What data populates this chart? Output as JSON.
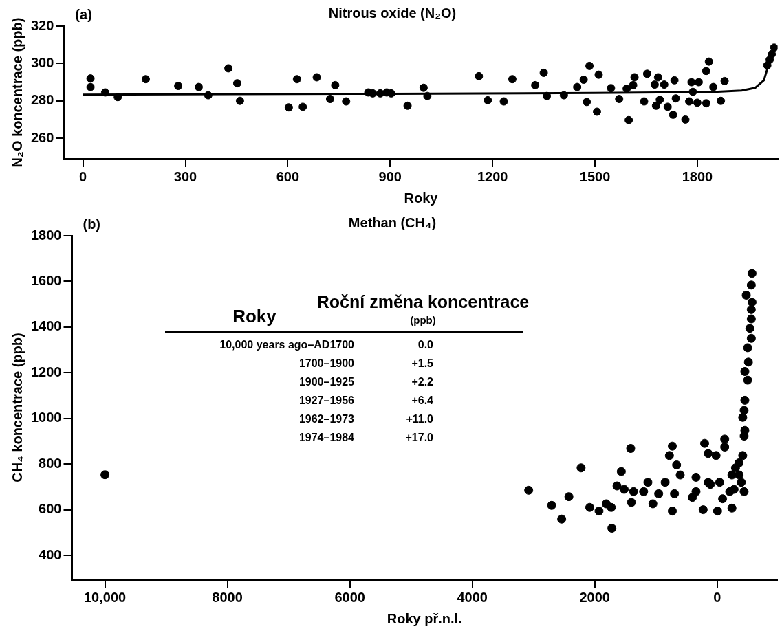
{
  "chart_data": [
    {
      "type": "scatter",
      "title": "Nitrous oxide (N₂O)",
      "xlabel": "Roky",
      "ylabel": "N₂O koncentrace (ppb)",
      "xlim": [
        -55,
        2035
      ],
      "ylim": [
        249,
        320
      ],
      "xticks": [
        0,
        300,
        600,
        900,
        1200,
        1500,
        1800
      ],
      "yticks": [
        260,
        280,
        300,
        320
      ],
      "annotations": [
        "(a)"
      ],
      "series": [
        {
          "type": "scatter",
          "marker": "circle",
          "color": "#000000",
          "x": [
            22,
            22,
            65,
            102,
            184,
            279,
            339,
            367,
            426,
            452,
            460,
            603,
            627,
            644,
            685,
            724,
            739,
            771,
            836,
            849,
            871,
            890,
            903,
            951,
            998,
            1009,
            1160,
            1186,
            1233,
            1258,
            1325,
            1350,
            1359,
            1409,
            1448,
            1467,
            1476,
            1484,
            1506,
            1511,
            1547,
            1571,
            1593,
            1599,
            1612,
            1616,
            1644,
            1653,
            1675,
            1679,
            1685,
            1690,
            1703,
            1713,
            1729,
            1733,
            1737,
            1765,
            1776,
            1783,
            1787,
            1800,
            1804,
            1826,
            1826,
            1834,
            1847,
            1869,
            1880,
            2005,
            2012,
            2018,
            2025
          ],
          "values": [
            292,
            287.4,
            284.5,
            282,
            291.6,
            288,
            287.4,
            283,
            297.4,
            289.4,
            280,
            276.5,
            291.6,
            276.8,
            292.6,
            281,
            288.4,
            279.7,
            284.5,
            284,
            284,
            284.5,
            284,
            277.4,
            287,
            282.6,
            293.2,
            280.3,
            279.7,
            291.6,
            288.4,
            295,
            282.6,
            283,
            287.4,
            291.3,
            279.4,
            298.7,
            274.2,
            294,
            286.8,
            281,
            286.5,
            269.7,
            288.4,
            292.6,
            279.7,
            294.5,
            288.7,
            277.4,
            292.6,
            280.6,
            288.7,
            276.8,
            272.6,
            291,
            281.3,
            270,
            279.7,
            290,
            284.8,
            279,
            290,
            278.7,
            296,
            301,
            287.4,
            280,
            290.6,
            299,
            302,
            305,
            308.5
          ]
        },
        {
          "type": "line",
          "marker": "none",
          "color": "#000000",
          "x": [
            0,
            900,
            1500,
            1850,
            1930,
            1970,
            1995,
            2005,
            2015,
            2025
          ],
          "values": [
            283.3,
            283.8,
            284.2,
            284.8,
            285.5,
            287,
            291,
            297,
            303,
            308.5
          ]
        }
      ]
    },
    {
      "type": "scatter",
      "title": "Methan (CH₄)",
      "xlabel": "Roky př.n.l.",
      "ylabel": "CH₄ koncentrace (ppb)",
      "xlim": [
        10540,
        -980
      ],
      "ylim": [
        296,
        1800
      ],
      "xticks": [
        {
          "value": 10000,
          "label": "10,000"
        },
        8000,
        6000,
        4000,
        2000,
        0
      ],
      "yticks": [
        400,
        600,
        800,
        1000,
        1200,
        1400,
        1600,
        1800
      ],
      "marker": "circle",
      "annotations": [
        "(b)",
        "Roky",
        "Roční změna koncentrace",
        "(ppb)",
        "10,000 years ago–AD1700",
        "0.0",
        "1700–1900",
        "+1.5",
        "1900–1925",
        "+2.2",
        "1927–1956",
        "+6.4",
        "1962–1973",
        "+11.0",
        "1974–1984",
        "+17.0"
      ],
      "series": [
        {
          "type": "scatter",
          "color": "#000000",
          "x": [
            10000,
            3079,
            2704,
            2540,
            2422,
            2223,
            2082,
            1930,
            1812,
            1730,
            1720,
            1636,
            1566,
            1519,
            1413,
            1401,
            1366,
            1202,
            1132,
            1050,
            956,
            850,
            780,
            733,
            733,
            698,
            663,
            604,
            405,
            346,
            346,
            229,
            205,
            147,
            147,
            112,
            18,
            -6,
            -41,
            -88,
            -123,
            -123,
            -205,
            -241,
            -241,
            -276,
            -299,
            -358,
            -358,
            -393,
            -417,
            -417,
            -440,
            -440,
            -440,
            -452,
            -452,
            -452,
            -475,
            -498,
            -498,
            -510,
            -534,
            -557,
            -557,
            -557,
            -557,
            -569,
            -569
          ],
          "values": [
            754,
            686,
            620,
            560,
            658,
            784,
            611,
            595,
            627,
            611,
            520,
            705,
            768,
            690,
            869,
            633,
            680,
            680,
            721,
            627,
            671,
            721,
            838,
            879,
            595,
            671,
            797,
            753,
            655,
            743,
            680,
            601,
            891,
            847,
            721,
            712,
            838,
            595,
            721,
            649,
            910,
            875,
            680,
            608,
            753,
            690,
            784,
            806,
            753,
            721,
            838,
            1005,
            923,
            1036,
            680,
            948,
            1080,
            1206,
            1540,
            1168,
            1310,
            1247,
            1395,
            1351,
            1436,
            1477,
            1584,
            1509,
            1635
          ]
        }
      ]
    }
  ]
}
